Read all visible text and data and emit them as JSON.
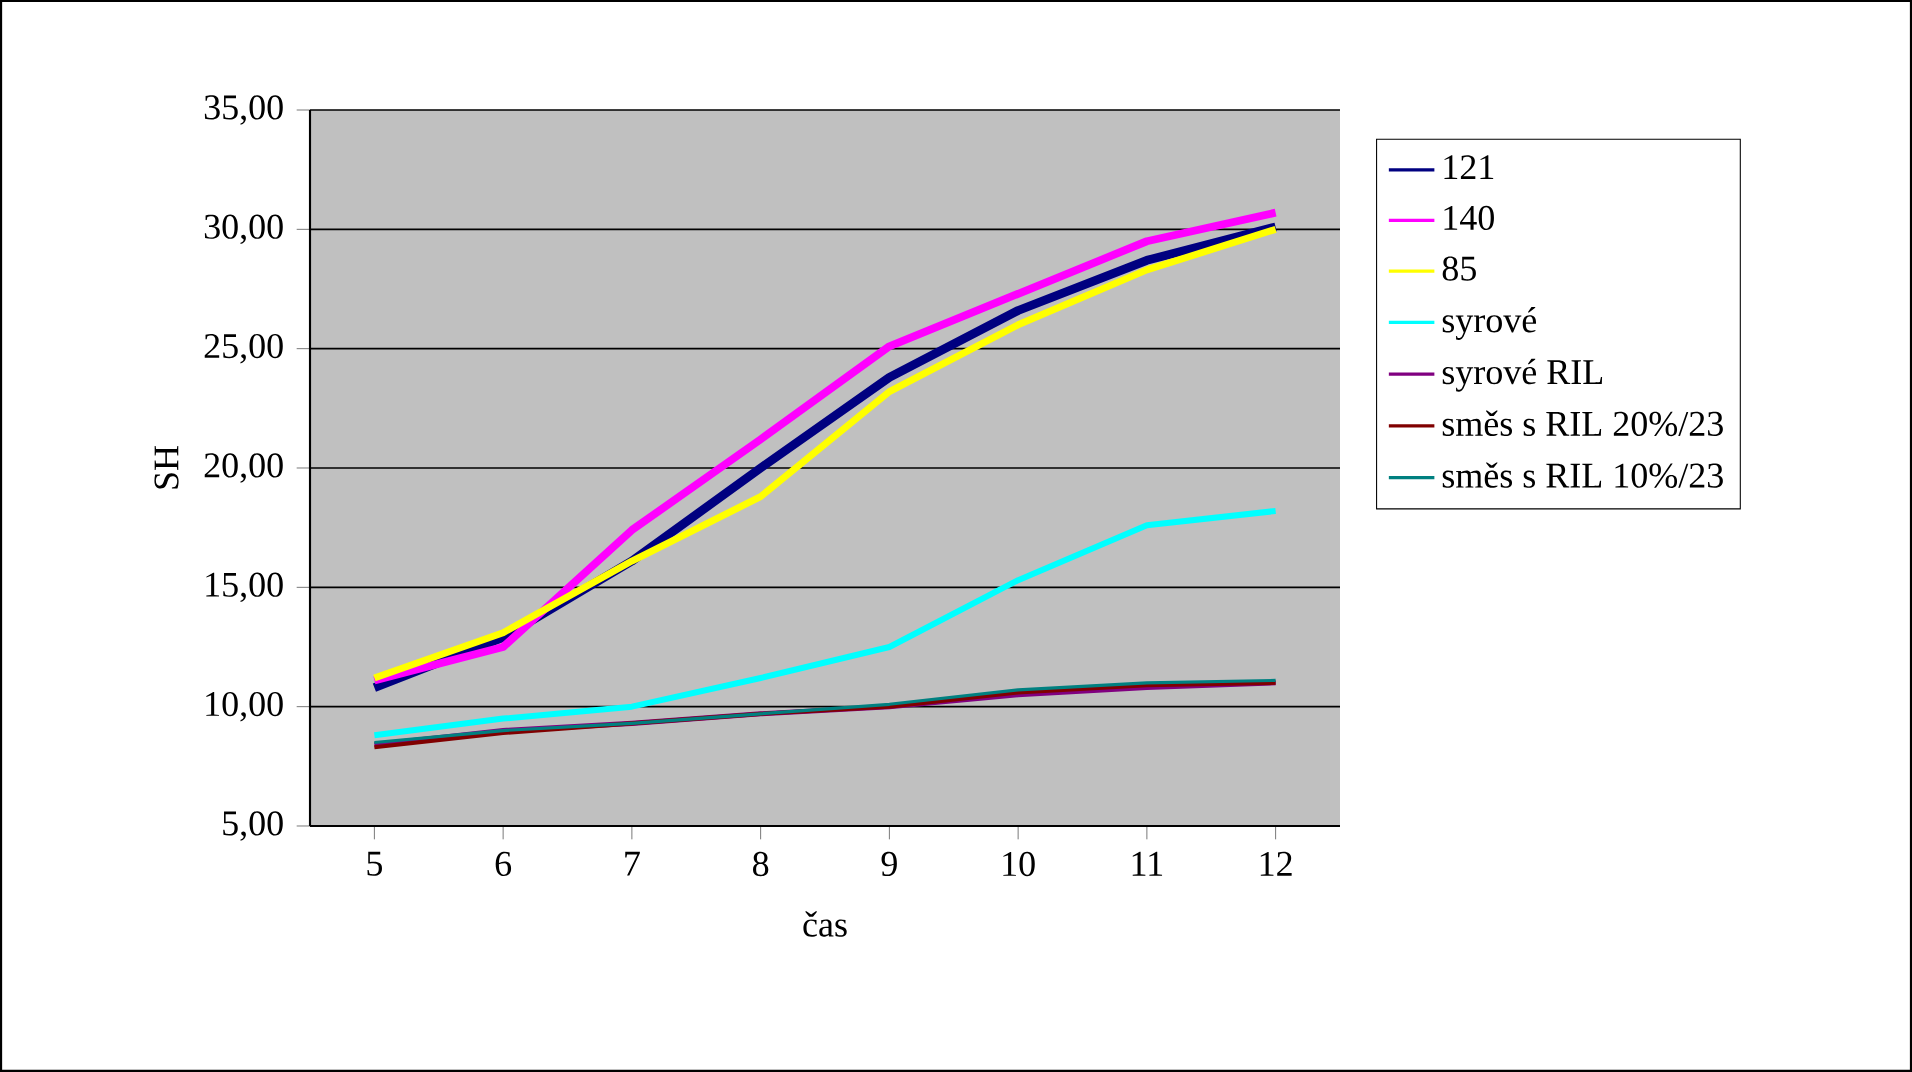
{
  "chart_data": {
    "type": "line",
    "xlabel": "čas",
    "ylabel": "SH",
    "categories": [
      "5",
      "6",
      "7",
      "8",
      "9",
      "10",
      "11",
      "12"
    ],
    "series": [
      {
        "name": "121",
        "color": "#000080",
        "values": [
          10.8,
          12.9,
          16.1,
          20.0,
          23.8,
          26.6,
          28.7,
          30.1
        ]
      },
      {
        "name": "140",
        "color": "#ff00ff",
        "values": [
          11.1,
          12.5,
          17.4,
          21.2,
          25.1,
          27.3,
          29.5,
          30.7
        ]
      },
      {
        "name": "85",
        "color": "#ffff00",
        "values": [
          11.2,
          13.1,
          16.1,
          18.8,
          23.2,
          26.0,
          28.3,
          30.0
        ]
      },
      {
        "name": "syrové",
        "color": "#00ffff",
        "values": [
          8.8,
          9.5,
          10.0,
          11.2,
          12.5,
          15.3,
          17.6,
          18.2
        ]
      },
      {
        "name": "syrové RIL",
        "color": "#800080",
        "values": [
          8.4,
          9.0,
          9.3,
          9.7,
          10.0,
          10.5,
          10.8,
          11.0
        ]
      },
      {
        "name": "směs s RIL 20%/23",
        "color": "#800000",
        "values": [
          8.3,
          8.9,
          9.3,
          9.7,
          10.0,
          10.6,
          10.9,
          11.0
        ]
      },
      {
        "name": "směs s RIL 10%/23",
        "color": "#008080",
        "values": [
          8.5,
          9.0,
          9.3,
          9.7,
          10.1,
          10.7,
          11.0,
          11.1
        ]
      }
    ],
    "ylim": [
      5,
      35
    ],
    "yticks": [
      {
        "value": 5,
        "label": "5,00"
      },
      {
        "value": 10,
        "label": "10,00"
      },
      {
        "value": 15,
        "label": "15,00"
      },
      {
        "value": 20,
        "label": "20,00"
      },
      {
        "value": 25,
        "label": "25,00"
      },
      {
        "value": 30,
        "label": "30,00"
      },
      {
        "value": 35,
        "label": "35,00"
      }
    ],
    "grid": "y",
    "legend": "right",
    "marker": "none",
    "line_style": "solid"
  }
}
